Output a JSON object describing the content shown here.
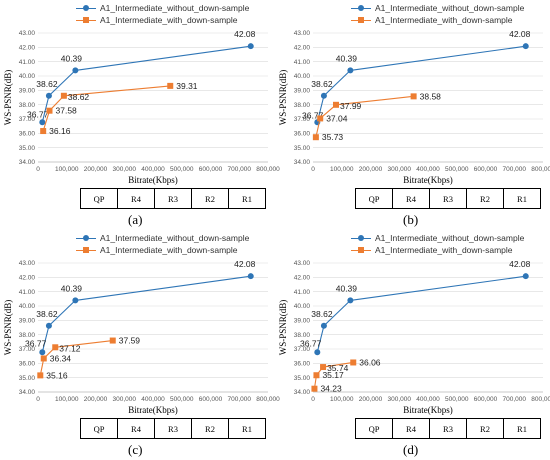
{
  "legend": [
    {
      "label": "A1_Intermediate_without_down-sample",
      "color": "#2e75b6",
      "marker": "circle"
    },
    {
      "label": "A1_Intermediate_with_down-sample",
      "color": "#ed7d31",
      "marker": "square"
    }
  ],
  "table": {
    "header": "QP",
    "cells": [
      "R4",
      "R3",
      "R2",
      "R1"
    ]
  },
  "chart_data": [
    {
      "panel": "(a)",
      "type": "line",
      "xlabel": "Bitrate(Kbps)",
      "ylabel": "WS-PSNR(dB)",
      "xlim": [
        0,
        800000
      ],
      "ylim": [
        34,
        43
      ],
      "xticks": [
        "0",
        "100,000",
        "200,000",
        "300,000",
        "400,000",
        "500,000",
        "600,000",
        "700,000",
        "800,000"
      ],
      "yticks": [
        "34.00",
        "35.00",
        "36.00",
        "37.00",
        "38.00",
        "39.00",
        "40.00",
        "41.00",
        "42.00",
        "43.00"
      ],
      "grid": "horizontal",
      "legend_position": "top",
      "series": [
        {
          "name": "A1_Intermediate_without_down-sample",
          "x": [
            15000,
            38000,
            130000,
            740000
          ],
          "y": [
            36.77,
            38.62,
            40.39,
            42.08
          ],
          "labels": [
            "36.77",
            "38.62",
            "40.39",
            "42.08"
          ]
        },
        {
          "name": "A1_Intermediate_with_down-sample",
          "x": [
            18000,
            40000,
            90000,
            460000
          ],
          "y": [
            36.16,
            37.58,
            38.62,
            39.31
          ],
          "labels": [
            "36.16",
            "37.58",
            "38.62",
            "39.31"
          ]
        }
      ]
    },
    {
      "panel": "(b)",
      "type": "line",
      "xlabel": "Bitrate(Kbps)",
      "ylabel": "WS-PSNR(dB)",
      "xlim": [
        0,
        800000
      ],
      "ylim": [
        34,
        43
      ],
      "xticks": [
        "0",
        "100,000",
        "200,000",
        "300,000",
        "400,000",
        "500,000",
        "600,000",
        "700,000",
        "800,000"
      ],
      "yticks": [
        "34.00",
        "35.00",
        "36.00",
        "37.00",
        "38.00",
        "39.00",
        "40.00",
        "41.00",
        "42.00",
        "43.00"
      ],
      "grid": "horizontal",
      "legend_position": "top",
      "series": [
        {
          "name": "A1_Intermediate_without_down-sample",
          "x": [
            15000,
            38000,
            130000,
            740000
          ],
          "y": [
            36.77,
            38.62,
            40.39,
            42.08
          ],
          "labels": [
            "36.77",
            "38.62",
            "40.39",
            "42.08"
          ]
        },
        {
          "name": "A1_Intermediate_with_down-sample",
          "x": [
            10000,
            25000,
            80000,
            350000
          ],
          "y": [
            35.73,
            37.04,
            37.99,
            38.58
          ],
          "labels": [
            "35.73",
            "37.04",
            "37.99",
            "38.58"
          ]
        }
      ]
    },
    {
      "panel": "(c)",
      "type": "line",
      "xlabel": "Bitrate(Kbps)",
      "ylabel": "WS-PSNR(dB)",
      "xlim": [
        0,
        800000
      ],
      "ylim": [
        34,
        43
      ],
      "xticks": [
        "0",
        "100,000",
        "200,000",
        "300,000",
        "400,000",
        "500,000",
        "600,000",
        "700,000",
        "800,000"
      ],
      "yticks": [
        "34.00",
        "35.00",
        "36.00",
        "37.00",
        "38.00",
        "39.00",
        "40.00",
        "41.00",
        "42.00",
        "43.00"
      ],
      "grid": "horizontal",
      "legend_position": "top",
      "series": [
        {
          "name": "A1_Intermediate_without_down-sample",
          "x": [
            15000,
            38000,
            130000,
            740000
          ],
          "y": [
            36.77,
            38.62,
            40.39,
            42.08
          ],
          "labels": [
            "36.77",
            "38.62",
            "40.39",
            "42.08"
          ]
        },
        {
          "name": "A1_Intermediate_with_down-sample",
          "x": [
            8000,
            20000,
            60000,
            260000
          ],
          "y": [
            35.16,
            36.34,
            37.12,
            37.59
          ],
          "labels": [
            "35.16",
            "36.34",
            "37.12",
            "37.59"
          ]
        }
      ]
    },
    {
      "panel": "(d)",
      "type": "line",
      "xlabel": "Bitrate(Kbps)",
      "ylabel": "WS-PSNR(dB)",
      "xlim": [
        0,
        800000
      ],
      "ylim": [
        34,
        43
      ],
      "xticks": [
        "0",
        "100,000",
        "200,000",
        "300,000",
        "400,000",
        "500,000",
        "600,000",
        "700,000",
        "800,000"
      ],
      "yticks": [
        "34.00",
        "35.00",
        "36.00",
        "37.00",
        "38.00",
        "39.00",
        "40.00",
        "41.00",
        "42.00",
        "43.00"
      ],
      "grid": "horizontal",
      "legend_position": "top",
      "series": [
        {
          "name": "A1_Intermediate_without_down-sample",
          "x": [
            15000,
            38000,
            130000,
            740000
          ],
          "y": [
            36.77,
            38.62,
            40.39,
            42.08
          ],
          "labels": [
            "36.77",
            "38.62",
            "40.39",
            "42.08"
          ]
        },
        {
          "name": "A1_Intermediate_with_down-sample",
          "x": [
            5000,
            12000,
            35000,
            140000
          ],
          "y": [
            34.23,
            35.17,
            35.74,
            36.06
          ],
          "labels": [
            "34.23",
            "35.17",
            "35.74",
            "36.06"
          ]
        }
      ]
    }
  ]
}
